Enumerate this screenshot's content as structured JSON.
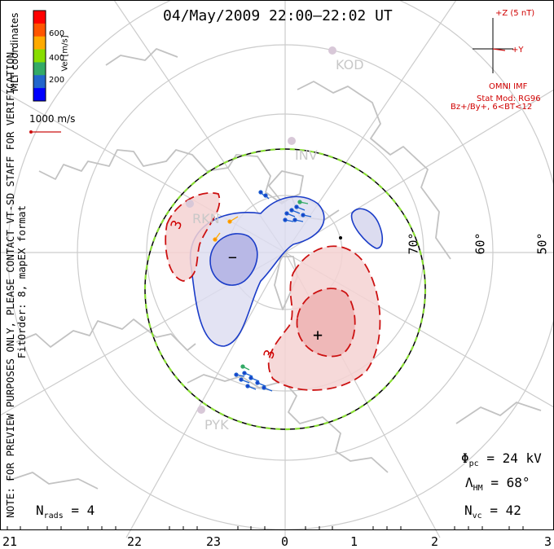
{
  "title": "04/May/2009 22:00–22:02 UT",
  "note_lines": [
    "NOTE: FOR PREVIEW PURPOSES ONLY, PLEASE CONTACT VT-SD STAFF FOR VERIFICATION.",
    "FitOrder: 8, mapEX format"
  ],
  "color_scale": {
    "title": "Vel [m/s]",
    "ticks": [
      "600",
      "400",
      "200"
    ],
    "colors": [
      "#ff0000",
      "#ff5500",
      "#ffaa00",
      "#88dd00",
      "#33aa66",
      "#2266cc",
      "#0000ff"
    ]
  },
  "coordinate_label": "MLT coordinates",
  "velocity_scale_label": "1000 m/s",
  "imf": {
    "z_label": "+Z (5 nT)",
    "y_label": "+Y",
    "title": "OMNI IMF",
    "stat_model": "Stat Mod: RG96",
    "condition": "Bz+/By+, 6<BT<12"
  },
  "stations": [
    "KOD",
    "INV",
    "RKN",
    "PYK"
  ],
  "latitude_labels": [
    "70°",
    "60°",
    "50°"
  ],
  "mlt_labels": [
    "21",
    "22",
    "23",
    "0",
    "1",
    "2",
    "3"
  ],
  "potential_marks": {
    "negative": "−",
    "positive": "+",
    "contour_value": "3"
  },
  "stats": {
    "phi_label": "Φ",
    "phi_sub": "pc",
    "phi_value": "= 24 kV",
    "lambda_label": "Λ",
    "lambda_sub": "HM",
    "lambda_value": "= 68°",
    "nvc_label": "N",
    "nvc_sub": "vc",
    "nvc_value": "= 42",
    "nrads_label": "N",
    "nrads_sub": "rads",
    "nrads_value": "= 4"
  }
}
